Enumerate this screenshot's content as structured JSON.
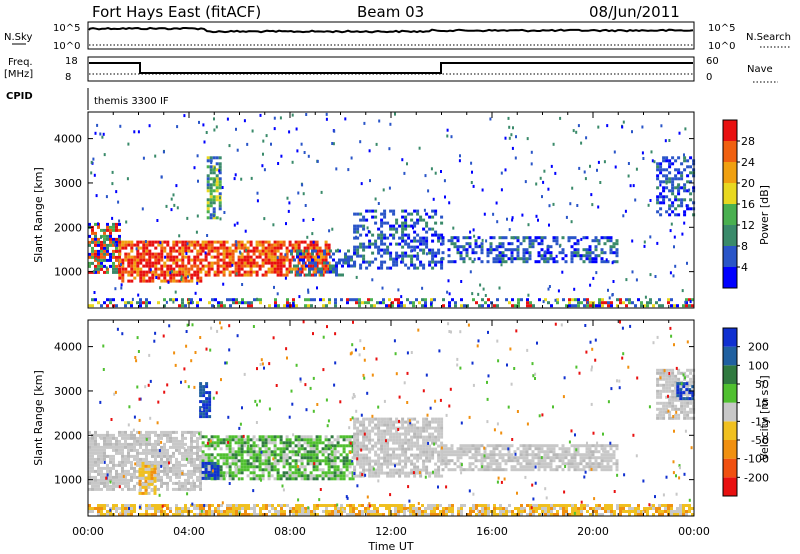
{
  "header": {
    "station": "Fort Hays East (fitACF)",
    "beam": "Beam 03",
    "date": "08/Jun/2011"
  },
  "top_panels": {
    "nsky_label": "N.Sky",
    "nsky_ticks": [
      "10^5",
      "10^0"
    ],
    "nsearch_label": "N.Search",
    "nsearch_ticks": [
      "10^5",
      "10^0"
    ],
    "freq_label_1": "Freq.",
    "freq_label_2": "[MHz]",
    "freq_ticks": [
      "18",
      "8"
    ],
    "nave_label": "Nave",
    "nave_ticks": [
      "60",
      "0"
    ],
    "cpid_label": "CPID",
    "cpid_value": "themis 3300 IF"
  },
  "time_axis": {
    "label": "Time UT",
    "ticks": [
      "00:00",
      "04:00",
      "08:00",
      "12:00",
      "16:00",
      "20:00",
      "00:00"
    ]
  },
  "chart_data": [
    {
      "type": "heatmap",
      "panel": "power",
      "ylabel": "Slant Range [km]",
      "yticks": [
        1000,
        2000,
        3000,
        4000
      ],
      "ylim": [
        180,
        4600
      ],
      "xlim_hours": [
        0,
        24
      ],
      "colorbar_label": "Power [dB]",
      "colorbar_ticks": [
        4,
        8,
        12,
        16,
        20,
        24,
        28
      ],
      "colorbar_colors": [
        "#0000ff",
        "#2a55c8",
        "#3a8a6a",
        "#4ab050",
        "#e8d820",
        "#f0a010",
        "#f06010",
        "#e81010"
      ],
      "regions": [
        {
          "t": [
            0.0,
            1.2
          ],
          "r": [
            1000,
            2100
          ],
          "level": "medium-high"
        },
        {
          "t": [
            1.2,
            4.5
          ],
          "r": [
            800,
            1700
          ],
          "level": "high"
        },
        {
          "t": [
            4.5,
            9.5
          ],
          "r": [
            900,
            1700
          ],
          "level": "high"
        },
        {
          "t": [
            4.7,
            5.2
          ],
          "r": [
            2200,
            3600
          ],
          "level": "medium"
        },
        {
          "t": [
            8.0,
            10.5
          ],
          "r": [
            900,
            1500
          ],
          "level": "low"
        },
        {
          "t": [
            10.5,
            14.0
          ],
          "r": [
            1100,
            2400
          ],
          "level": "low"
        },
        {
          "t": [
            14.0,
            21.0
          ],
          "r": [
            1200,
            1800
          ],
          "level": "low"
        },
        {
          "t": [
            22.5,
            24.0
          ],
          "r": [
            2300,
            3600
          ],
          "level": "low"
        },
        {
          "t": [
            0.0,
            24.0
          ],
          "r": [
            200,
            400
          ],
          "level": "mixed"
        }
      ]
    },
    {
      "type": "heatmap",
      "panel": "velocity",
      "ylabel": "Slant Range [km]",
      "yticks": [
        1000,
        2000,
        3000,
        4000
      ],
      "ylim": [
        180,
        4600
      ],
      "xlim_hours": [
        0,
        24
      ],
      "colorbar_label": "Velocity [m s⁻¹]",
      "colorbar_ticks": [
        200,
        100,
        50,
        15,
        -15,
        -50,
        -100,
        -200
      ],
      "colorbar_colors": [
        "#1030d0",
        "#2060a0",
        "#307a40",
        "#50c030",
        "#c8c8c8",
        "#f0c020",
        "#f09010",
        "#f05010",
        "#e81010"
      ],
      "regions": [
        {
          "t": [
            0.0,
            4.5
          ],
          "r": [
            800,
            2100
          ],
          "level": "ground-scatter"
        },
        {
          "t": [
            2.0,
            2.6
          ],
          "r": [
            700,
            1400
          ],
          "level": "negative-low"
        },
        {
          "t": [
            4.5,
            10.5
          ],
          "r": [
            1000,
            2000
          ],
          "level": "positive-low"
        },
        {
          "t": [
            4.5,
            5.2
          ],
          "r": [
            1000,
            1400
          ],
          "level": "positive-high"
        },
        {
          "t": [
            10.5,
            14.0
          ],
          "r": [
            1100,
            2400
          ],
          "level": "ground-scatter"
        },
        {
          "t": [
            14.0,
            21.0
          ],
          "r": [
            1200,
            1800
          ],
          "level": "ground-scatter"
        },
        {
          "t": [
            22.5,
            24.0
          ],
          "r": [
            2400,
            3500
          ],
          "level": "ground-scatter"
        },
        {
          "t": [
            23.3,
            24.0
          ],
          "r": [
            2800,
            3200
          ],
          "level": "positive-high"
        },
        {
          "t": [
            4.4,
            4.8
          ],
          "r": [
            2400,
            3200
          ],
          "level": "positive-high"
        },
        {
          "t": [
            0.0,
            24.0
          ],
          "r": [
            200,
            450
          ],
          "level": "negative-low"
        }
      ]
    }
  ]
}
